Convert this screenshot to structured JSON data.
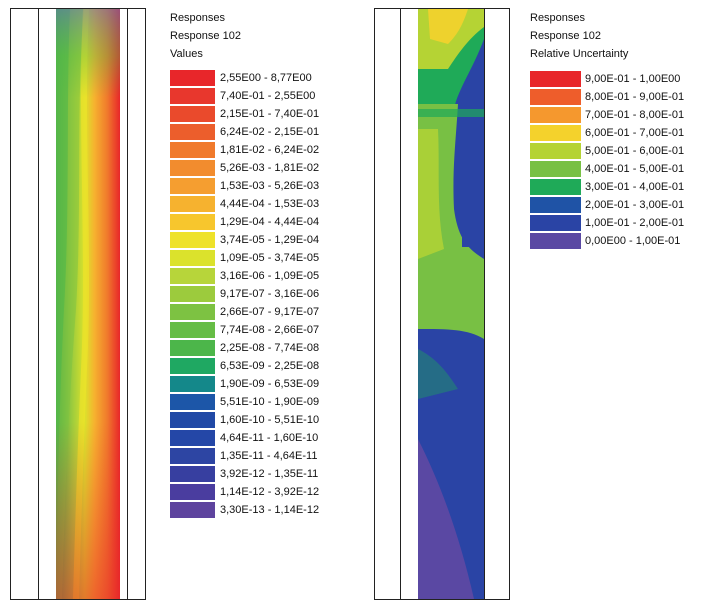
{
  "left_panel": {
    "legend": {
      "title": "Responses",
      "subtitle": "Response 102",
      "quantity": "Values",
      "items": [
        {
          "label": "2,55E00 - 8,77E00",
          "color": "#e8262a"
        },
        {
          "label": "7,40E-01 - 2,55E00",
          "color": "#e8372d"
        },
        {
          "label": "2,15E-01 - 7,40E-01",
          "color": "#ea4a2c"
        },
        {
          "label": "6,24E-02 - 2,15E-01",
          "color": "#ec5e2c"
        },
        {
          "label": "1,81E-02 - 6,24E-02",
          "color": "#f07a2c"
        },
        {
          "label": "5,26E-03 - 1,81E-02",
          "color": "#f28c2e"
        },
        {
          "label": "1,53E-03 - 5,26E-03",
          "color": "#f59e30"
        },
        {
          "label": "4,44E-04 - 1,53E-03",
          "color": "#f6b22f"
        },
        {
          "label": "1,29E-04 - 4,44E-04",
          "color": "#f7c62d"
        },
        {
          "label": "3,74E-05 - 1,29E-04",
          "color": "#eee22a"
        },
        {
          "label": "1,09E-05 - 3,74E-05",
          "color": "#dbe22c"
        },
        {
          "label": "3,16E-06 - 1,09E-05",
          "color": "#b7d53a"
        },
        {
          "label": "9,17E-07 - 3,16E-06",
          "color": "#9ccb3d"
        },
        {
          "label": "2,66E-07 - 9,17E-07",
          "color": "#7dc242"
        },
        {
          "label": "7,74E-08 - 2,66E-07",
          "color": "#66bd45"
        },
        {
          "label": "2,25E-08 - 7,74E-08",
          "color": "#4cb64a"
        },
        {
          "label": "6,53E-09 - 2,25E-08",
          "color": "#1fa862"
        },
        {
          "label": "1,90E-09 - 6,53E-09",
          "color": "#14888a"
        },
        {
          "label": "5,51E-10 - 1,90E-09",
          "color": "#1c56a8"
        },
        {
          "label": "1,60E-10 - 5,51E-10",
          "color": "#2149a6"
        },
        {
          "label": "4,64E-11 - 1,60E-10",
          "color": "#2447a7"
        },
        {
          "label": "1,35E-11 - 4,64E-11",
          "color": "#2d45a3"
        },
        {
          "label": "3,92E-12 - 1,35E-11",
          "color": "#373fa0"
        },
        {
          "label": "1,14E-12 - 3,92E-12",
          "color": "#4a3d9f"
        },
        {
          "label": "3,30E-13 - 1,14E-12",
          "color": "#5e449e"
        }
      ]
    }
  },
  "right_panel": {
    "legend": {
      "title": "Responses",
      "subtitle": "Response 102",
      "quantity": "Relative Uncertainty",
      "items": [
        {
          "label": "9,00E-01 - 1,00E00",
          "color": "#e8262a"
        },
        {
          "label": "8,00E-01 - 9,00E-01",
          "color": "#ee5d2b"
        },
        {
          "label": "7,00E-01 - 8,00E-01",
          "color": "#f5982e"
        },
        {
          "label": "6,00E-01 - 7,00E-01",
          "color": "#f4d22c"
        },
        {
          "label": "5,00E-01 - 6,00E-01",
          "color": "#b5d334"
        },
        {
          "label": "4,00E-01 - 5,00E-01",
          "color": "#78c044"
        },
        {
          "label": "3,00E-01 - 4,00E-01",
          "color": "#1faa58"
        },
        {
          "label": "2,00E-01 - 3,00E-01",
          "color": "#1f53a6"
        },
        {
          "label": "1,00E-01 - 2,00E-01",
          "color": "#2a44a5"
        },
        {
          "label": "0,00E00 - 1,00E-01",
          "color": "#5a48a3"
        }
      ]
    }
  }
}
